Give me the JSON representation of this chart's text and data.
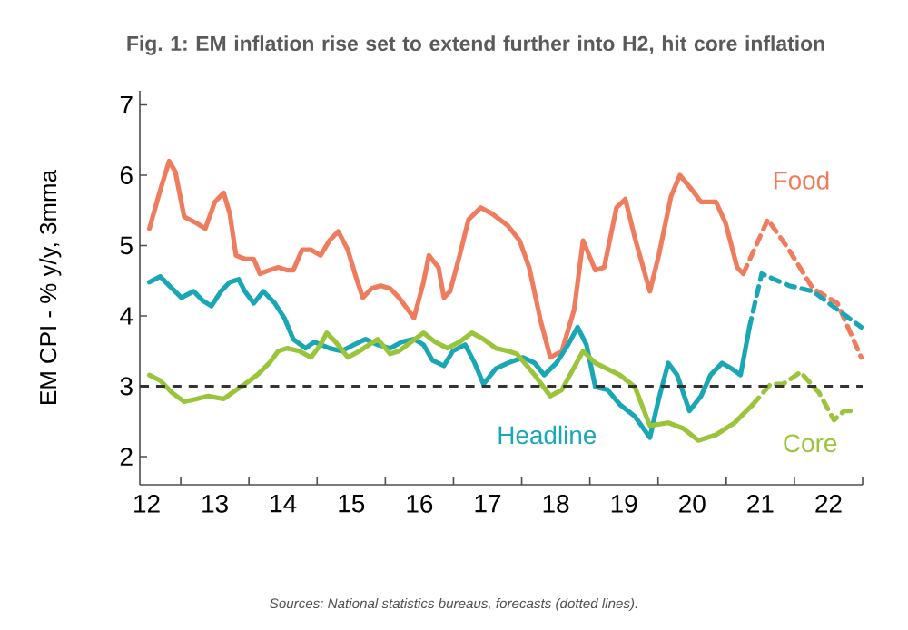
{
  "chart_data": {
    "type": "line",
    "title": "Fig. 1: EM inflation rise set to extend further into H2, hit core inflation",
    "ylabel": "EM CPI - % y/y, 3mma",
    "annotations": [
      "Sources: National statistics bureaus, forecasts (dotted lines)."
    ],
    "xlim": [
      11.9,
      22.5
    ],
    "ylim": [
      1.6,
      7.2
    ],
    "yticks": [
      2,
      3,
      4,
      5,
      6,
      7
    ],
    "xticks": [
      12,
      13,
      14,
      15,
      16,
      17,
      18,
      19,
      20,
      21,
      22,
      {
        "value": 12.5,
        "label": null
      },
      {
        "value": 13.5,
        "label": null
      },
      {
        "value": 14.5,
        "label": null
      },
      {
        "value": 15.5,
        "label": null
      },
      {
        "value": 16.5,
        "label": null
      },
      {
        "value": 17.5,
        "label": null
      },
      {
        "value": 18.5,
        "label": null
      },
      {
        "value": 19.5,
        "label": null
      },
      {
        "value": 20.5,
        "label": null
      },
      {
        "value": 21.5,
        "label": null
      },
      {
        "value": 22.5,
        "label": null
      }
    ],
    "ref_lines": [
      {
        "axis": "y",
        "value": 3,
        "color": "#333333",
        "line_style": "dashed"
      }
    ],
    "series": [
      {
        "name": "Food",
        "color": "#f07c5e",
        "line_style": "solid",
        "x": [
          12.04,
          12.2,
          12.33,
          12.42,
          12.55,
          12.73,
          12.86,
          13.0,
          13.13,
          13.22,
          13.31,
          13.44,
          13.57,
          13.66,
          13.8,
          13.93,
          14.06,
          14.15,
          14.28,
          14.41,
          14.55,
          14.68,
          14.81,
          14.95,
          15.08,
          15.17,
          15.3,
          15.43,
          15.57,
          15.7,
          15.83,
          15.92,
          16.06,
          16.14,
          16.28,
          16.36,
          16.45,
          16.59,
          16.72,
          16.9,
          17.07,
          17.3,
          17.47,
          17.61,
          17.78,
          17.92,
          18.09,
          18.27,
          18.4,
          18.58,
          18.71,
          18.89,
          19.02,
          19.16,
          19.38,
          19.51,
          19.69,
          19.82,
          20.0,
          20.13,
          20.35,
          20.49,
          20.66,
          20.75
        ],
        "values": [
          5.24,
          5.79,
          6.2,
          6.05,
          5.41,
          5.32,
          5.24,
          5.62,
          5.75,
          5.45,
          4.86,
          4.81,
          4.81,
          4.6,
          4.65,
          4.69,
          4.65,
          4.65,
          4.94,
          4.94,
          4.86,
          5.07,
          5.2,
          4.94,
          4.52,
          4.26,
          4.39,
          4.43,
          4.39,
          4.26,
          4.09,
          3.97,
          4.48,
          4.86,
          4.69,
          4.26,
          4.35,
          4.86,
          5.37,
          5.54,
          5.45,
          5.28,
          5.07,
          4.69,
          3.92,
          3.41,
          3.5,
          4.09,
          5.07,
          4.65,
          4.69,
          5.54,
          5.66,
          5.11,
          4.35,
          4.86,
          5.7,
          6.0,
          5.79,
          5.62,
          5.62,
          5.32,
          4.69,
          4.6
        ]
      },
      {
        "color": "#f07c5e",
        "line_style": "dashed",
        "x": [
          20.75,
          21.11,
          21.42,
          21.77,
          22.13,
          22.48
        ],
        "values": [
          4.6,
          5.37,
          4.94,
          4.39,
          4.18,
          3.41
        ]
      },
      {
        "name": "Headline",
        "color": "#1aa7b5",
        "line_style": "solid",
        "x": [
          12.04,
          12.2,
          12.33,
          12.51,
          12.69,
          12.82,
          12.95,
          13.09,
          13.22,
          13.35,
          13.44,
          13.57,
          13.71,
          13.88,
          14.02,
          14.15,
          14.33,
          14.46,
          14.68,
          14.86,
          15.04,
          15.21,
          15.39,
          15.57,
          15.74,
          15.92,
          16.06,
          16.19,
          16.36,
          16.49,
          16.67,
          16.81,
          16.94,
          17.12,
          17.3,
          17.52,
          17.69,
          17.83,
          18.01,
          18.18,
          18.32,
          18.45,
          18.58,
          18.76,
          18.94,
          19.16,
          19.38,
          19.51,
          19.65,
          19.78,
          19.96,
          20.13,
          20.27,
          20.44,
          20.58,
          20.71,
          20.84
        ],
        "values": [
          4.48,
          4.56,
          4.43,
          4.26,
          4.35,
          4.22,
          4.14,
          4.35,
          4.48,
          4.52,
          4.35,
          4.18,
          4.35,
          4.18,
          3.97,
          3.67,
          3.54,
          3.63,
          3.54,
          3.5,
          3.59,
          3.67,
          3.59,
          3.54,
          3.63,
          3.67,
          3.59,
          3.37,
          3.29,
          3.5,
          3.59,
          3.33,
          3.03,
          3.25,
          3.33,
          3.41,
          3.33,
          3.16,
          3.33,
          3.59,
          3.84,
          3.59,
          2.99,
          2.95,
          2.74,
          2.57,
          2.27,
          2.82,
          3.33,
          3.16,
          2.65,
          2.86,
          3.16,
          3.33,
          3.25,
          3.16,
          3.84
        ]
      },
      {
        "color": "#1aa7b5",
        "line_style": "dashed",
        "x": [
          20.84,
          21.02,
          21.42,
          21.77,
          22.13,
          22.48
        ],
        "values": [
          3.84,
          4.6,
          4.43,
          4.35,
          4.09,
          3.84
        ]
      },
      {
        "name": "Core",
        "color": "#9ac43a",
        "line_style": "solid",
        "x": [
          12.04,
          12.2,
          12.37,
          12.55,
          12.73,
          12.9,
          13.13,
          13.26,
          13.44,
          13.62,
          13.8,
          13.93,
          14.06,
          14.24,
          14.41,
          14.55,
          14.64,
          14.77,
          14.95,
          15.12,
          15.39,
          15.57,
          15.7,
          15.88,
          16.06,
          16.23,
          16.41,
          16.59,
          16.77,
          16.94,
          17.12,
          17.3,
          17.43,
          17.69,
          17.92,
          18.09,
          18.4,
          18.58,
          18.94,
          19.16,
          19.38,
          19.65,
          19.87,
          20.09,
          20.35,
          20.62,
          20.89
        ],
        "values": [
          3.16,
          3.08,
          2.91,
          2.78,
          2.82,
          2.86,
          2.82,
          2.91,
          3.03,
          3.16,
          3.33,
          3.5,
          3.54,
          3.5,
          3.41,
          3.59,
          3.76,
          3.63,
          3.41,
          3.5,
          3.67,
          3.46,
          3.5,
          3.63,
          3.76,
          3.63,
          3.54,
          3.63,
          3.76,
          3.67,
          3.54,
          3.5,
          3.46,
          3.16,
          2.86,
          2.95,
          3.5,
          3.33,
          3.16,
          2.99,
          2.44,
          2.48,
          2.4,
          2.23,
          2.31,
          2.48,
          2.74
        ]
      },
      {
        "color": "#9ac43a",
        "line_style": "dashed",
        "x": [
          20.89,
          21.15,
          21.33,
          21.59,
          21.86,
          22.08,
          22.23,
          22.41
        ],
        "values": [
          2.74,
          3.03,
          3.03,
          3.2,
          2.91,
          2.52,
          2.65,
          2.65
        ]
      }
    ]
  }
}
